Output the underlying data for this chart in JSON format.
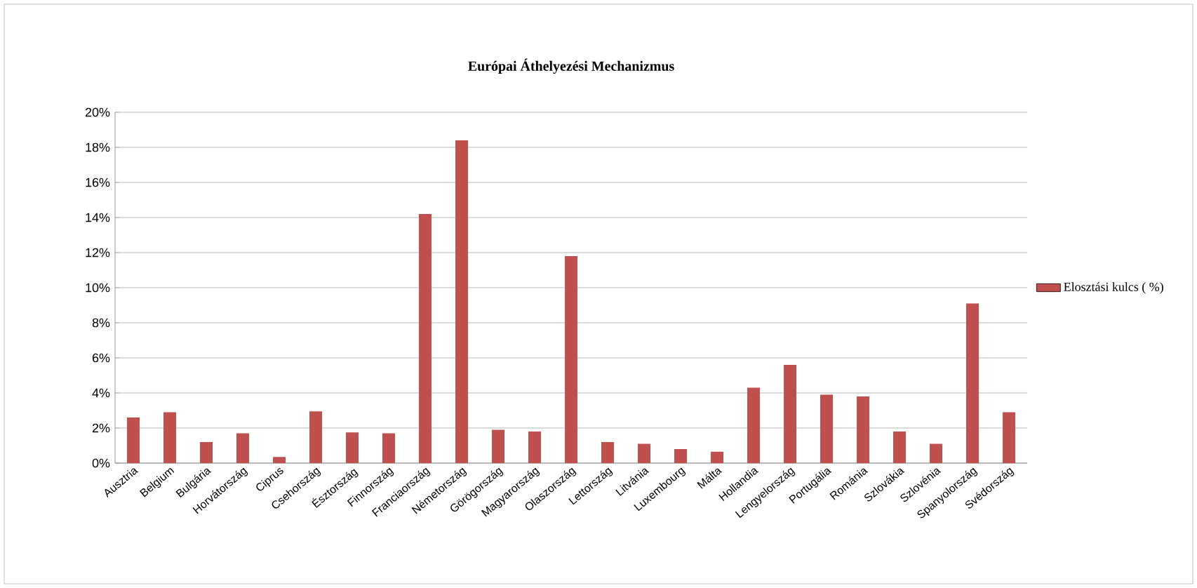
{
  "chart_data": {
    "type": "bar",
    "title": "Európai Áthelyezési Mechanizmus",
    "categories": [
      "Ausztria",
      "Belgium",
      "Bulgária",
      "Horvátország",
      "Ciprus",
      "Csehország",
      "Észtország",
      "Finnország",
      "Franciaország",
      "Németország",
      "Görögország",
      "Magyarország",
      "Olaszország",
      "Lettország",
      "Litvánia",
      "Luxembourg",
      "Málta",
      "Hollandia",
      "Lengyelország",
      "Portugália",
      "Románia",
      "Szlovákia",
      "Szlovénia",
      "Spanyolország",
      "Svédország"
    ],
    "series": [
      {
        "name": "Elosztási kulcs ( %)",
        "color": "#c0504d",
        "values": [
          2.6,
          2.9,
          1.2,
          1.7,
          0.35,
          2.95,
          1.75,
          1.7,
          14.2,
          18.4,
          1.9,
          1.8,
          11.8,
          1.2,
          1.1,
          0.8,
          0.65,
          4.3,
          5.6,
          3.9,
          3.8,
          1.8,
          1.1,
          9.1,
          2.9
        ]
      }
    ],
    "ylim": [
      0,
      20
    ],
    "yticks": [
      {
        "value": 0,
        "label": "0%"
      },
      {
        "value": 2,
        "label": "2%"
      },
      {
        "value": 4,
        "label": "4%"
      },
      {
        "value": 6,
        "label": "6%"
      },
      {
        "value": 8,
        "label": "8%"
      },
      {
        "value": 10,
        "label": "10%"
      },
      {
        "value": 12,
        "label": "12%"
      },
      {
        "value": 14,
        "label": "14%"
      },
      {
        "value": 16,
        "label": "16%"
      },
      {
        "value": 18,
        "label": "18%"
      },
      {
        "value": 20,
        "label": "20%"
      }
    ],
    "grid": "y",
    "legend": "right"
  }
}
